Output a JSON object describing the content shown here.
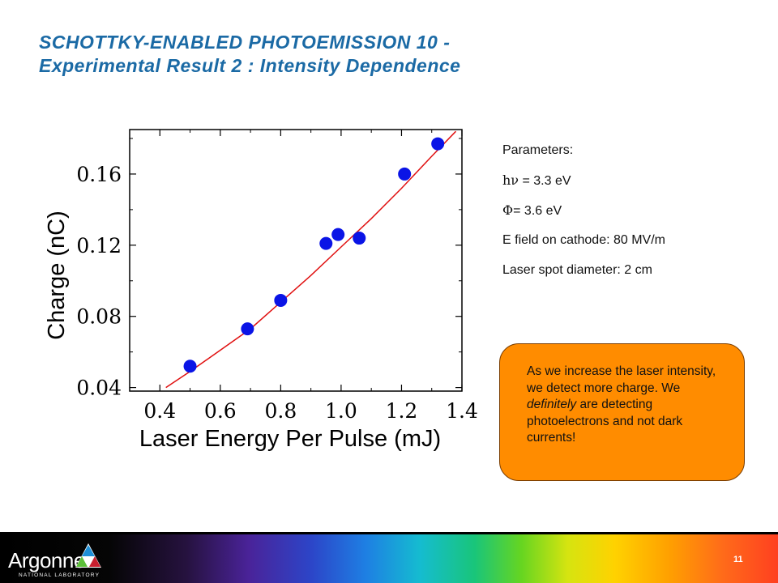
{
  "header": {
    "title_line1": "SCHOTTKY-ENABLED PHOTOEMISSION 10 -",
    "title_line2": "Experimental Result 2 : Intensity Dependence"
  },
  "chart_data": {
    "type": "scatter",
    "xlabel": "Laser Energy Per Pulse (mJ)",
    "ylabel": "Charge (nC)",
    "xlim": [
      0.3,
      1.4
    ],
    "ylim": [
      0.038,
      0.185
    ],
    "x_ticks": [
      {
        "value": 0.4,
        "label": "0.4"
      },
      {
        "value": 0.6,
        "label": "0.6"
      },
      {
        "value": 0.8,
        "label": "0.8"
      },
      {
        "value": 1.0,
        "label": "1.0"
      },
      {
        "value": 1.2,
        "label": "1.2"
      },
      {
        "value": 1.4,
        "label": "1.4"
      }
    ],
    "y_ticks": [
      {
        "value": 0.04,
        "label": "0.04"
      },
      {
        "value": 0.08,
        "label": "0.08"
      },
      {
        "value": 0.12,
        "label": "0.12"
      },
      {
        "value": 0.16,
        "label": "0.16"
      }
    ],
    "series": [
      {
        "points": [
          {
            "x": 0.5,
            "y": 0.052
          },
          {
            "x": 0.69,
            "y": 0.073
          },
          {
            "x": 0.8,
            "y": 0.089
          },
          {
            "x": 0.95,
            "y": 0.121
          },
          {
            "x": 0.99,
            "y": 0.126
          },
          {
            "x": 1.06,
            "y": 0.124
          },
          {
            "x": 1.21,
            "y": 0.16
          },
          {
            "x": 1.32,
            "y": 0.177
          }
        ]
      }
    ],
    "fit_curve": [
      {
        "x": 0.42,
        "y": 0.04
      },
      {
        "x": 0.5,
        "y": 0.049
      },
      {
        "x": 0.6,
        "y": 0.061
      },
      {
        "x": 0.7,
        "y": 0.073
      },
      {
        "x": 0.8,
        "y": 0.088
      },
      {
        "x": 0.9,
        "y": 0.103
      },
      {
        "x": 1.0,
        "y": 0.119
      },
      {
        "x": 1.1,
        "y": 0.135
      },
      {
        "x": 1.2,
        "y": 0.152
      },
      {
        "x": 1.3,
        "y": 0.17
      },
      {
        "x": 1.38,
        "y": 0.184
      }
    ],
    "grid": false,
    "colors": {
      "points": "#0a14e6",
      "fit": "#e01010"
    }
  },
  "params": {
    "heading": "Parameters:",
    "photon_symbol": "hν",
    "photon_value": " = 3.3 eV",
    "work_symbol": "Φ",
    "work_value": "= 3.6 eV",
    "field": "E field on cathode: 80 MV/m",
    "spot": "Laser spot diameter: 2 cm"
  },
  "callout": {
    "part1": "As we increase the laser intensity, we detect more charge. We ",
    "emphasis": "definitely",
    "part2": " are detecting photoelectrons and not dark currents!",
    "color": "#ff8c00"
  },
  "footer": {
    "logo_name": "Argonne",
    "logo_sub": "NATIONAL LABORATORY",
    "page_number": "11",
    "logo_icon": "argonne-triangle-logo-icon"
  }
}
